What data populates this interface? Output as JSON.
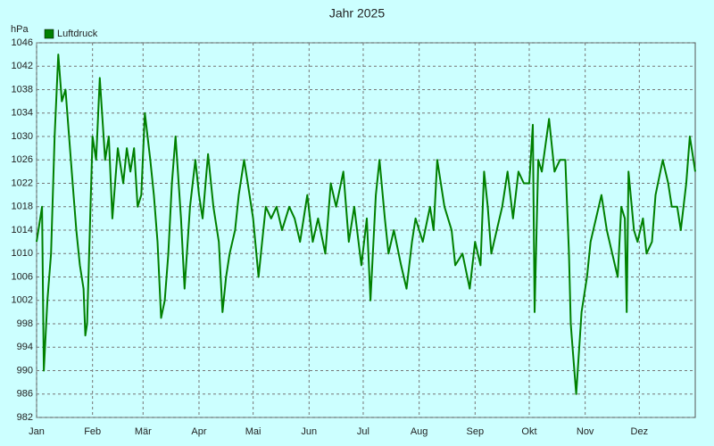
{
  "chart_data": {
    "type": "line",
    "title": "Jahr 2025",
    "y_label": "hPa",
    "x": [
      0,
      3,
      4,
      6,
      8,
      10,
      12,
      14,
      16,
      18,
      20,
      22,
      24,
      26,
      27,
      28,
      31,
      33,
      35,
      38,
      40,
      42,
      45,
      48,
      50,
      52,
      54,
      56,
      58,
      60,
      63,
      65,
      67,
      69,
      71,
      73,
      75,
      77,
      80,
      82,
      85,
      88,
      90,
      92,
      95,
      98,
      101,
      103,
      105,
      107,
      110,
      112,
      115,
      117,
      120,
      123,
      125,
      127,
      130,
      133,
      136,
      140,
      143,
      146,
      150,
      153,
      156,
      160,
      163,
      166,
      170,
      173,
      176,
      180,
      183,
      185,
      188,
      190,
      193,
      195,
      198,
      202,
      205,
      208,
      210,
      214,
      218,
      220,
      222,
      226,
      230,
      232,
      236,
      240,
      243,
      246,
      248,
      250,
      252,
      255,
      258,
      261,
      264,
      267,
      270,
      273,
      275,
      276,
      278,
      280,
      284,
      287,
      290,
      293,
      295,
      296,
      297,
      299,
      302,
      305,
      307,
      310,
      313,
      316,
      319,
      322,
      324,
      326,
      327,
      328,
      331,
      333,
      336,
      338,
      341,
      343,
      347,
      350,
      352,
      355,
      357,
      360,
      362,
      364,
      365
    ],
    "series": [
      {
        "name": "Luftdruck",
        "color": "#008000",
        "values": [
          1012,
          1018,
          990,
          1002,
          1010,
          1030,
          1044,
          1036,
          1038,
          1030,
          1022,
          1014,
          1008,
          1004,
          996,
          998,
          1030,
          1026,
          1040,
          1026,
          1030,
          1016,
          1028,
          1022,
          1028,
          1024,
          1028,
          1018,
          1020,
          1034,
          1026,
          1020,
          1012,
          999,
          1002,
          1010,
          1022,
          1030,
          1016,
          1004,
          1018,
          1026,
          1020,
          1016,
          1027,
          1018,
          1012,
          1000,
          1006,
          1010,
          1014,
          1020,
          1026,
          1022,
          1016,
          1006,
          1012,
          1018,
          1016,
          1018,
          1014,
          1018,
          1016,
          1012,
          1020,
          1012,
          1016,
          1010,
          1022,
          1018,
          1024,
          1012,
          1018,
          1008,
          1016,
          1002,
          1020,
          1026,
          1016,
          1010,
          1014,
          1008,
          1004,
          1012,
          1016,
          1012,
          1018,
          1014,
          1026,
          1018,
          1014,
          1008,
          1010,
          1004,
          1012,
          1008,
          1024,
          1018,
          1010,
          1014,
          1018,
          1024,
          1016,
          1024,
          1022,
          1022,
          1032,
          1000,
          1026,
          1024,
          1033,
          1024,
          1026,
          1026,
          1010,
          998,
          994,
          986,
          1000,
          1006,
          1012,
          1016,
          1020,
          1014,
          1010,
          1006,
          1018,
          1016,
          1000,
          1024,
          1014,
          1012,
          1016,
          1010,
          1012,
          1020,
          1026,
          1022,
          1018,
          1018,
          1014,
          1022,
          1030,
          1026,
          1024
        ]
      }
    ],
    "xlim": [
      0,
      365
    ],
    "xticks": [
      {
        "value": 0,
        "label": "Jan"
      },
      {
        "value": 31,
        "label": "Feb"
      },
      {
        "value": 59,
        "label": "Mär"
      },
      {
        "value": 90,
        "label": "Apr"
      },
      {
        "value": 120,
        "label": "Mai"
      },
      {
        "value": 151,
        "label": "Jun"
      },
      {
        "value": 181,
        "label": "Jul"
      },
      {
        "value": 212,
        "label": "Aug"
      },
      {
        "value": 243,
        "label": "Sep"
      },
      {
        "value": 273,
        "label": "Okt"
      },
      {
        "value": 304,
        "label": "Nov"
      },
      {
        "value": 334,
        "label": "Dez"
      }
    ],
    "ylim": [
      982,
      1046
    ],
    "yticks": [
      982,
      986,
      990,
      994,
      998,
      1002,
      1006,
      1010,
      1014,
      1018,
      1022,
      1026,
      1030,
      1034,
      1038,
      1042,
      1046
    ],
    "grid": true,
    "legend": "top-left"
  }
}
